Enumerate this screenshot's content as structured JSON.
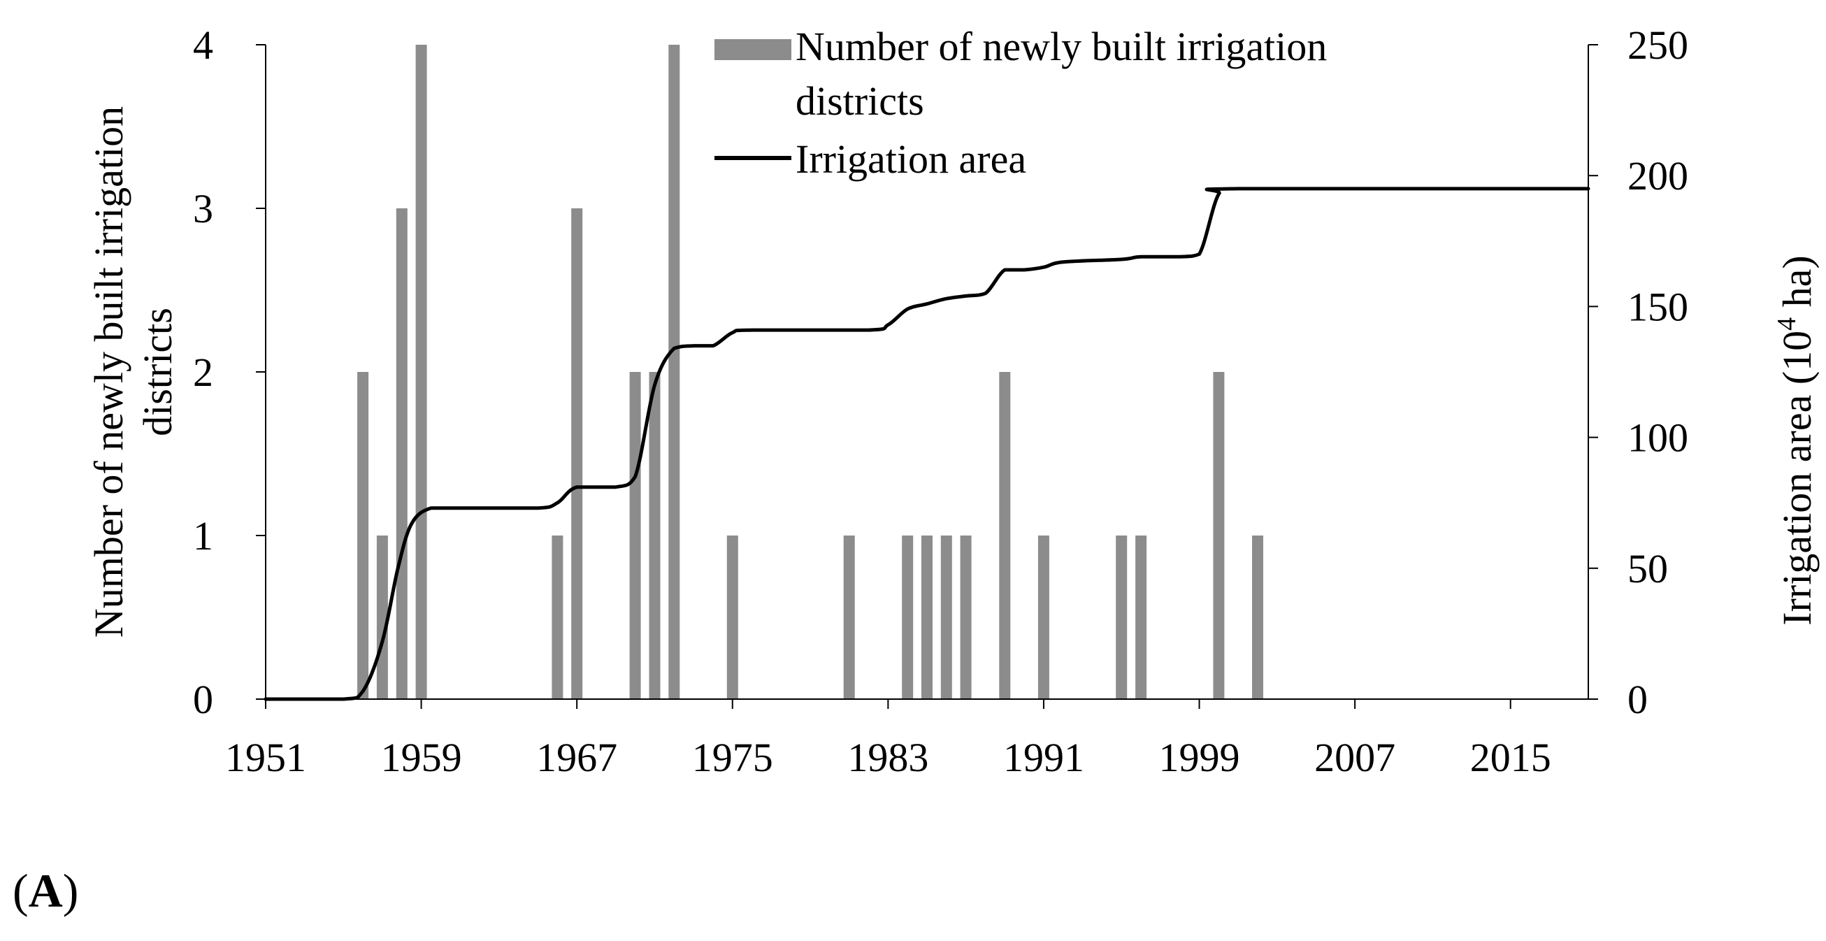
{
  "panel_label": {
    "open": "(",
    "letter": "A",
    "close": ")"
  },
  "chart_data": {
    "type": "bar+line",
    "x_axis": {
      "min": 1951,
      "max": 2019,
      "tick_labels": [
        "1951",
        "1959",
        "1967",
        "1975",
        "1983",
        "1991",
        "1999",
        "2007",
        "2015"
      ]
    },
    "y_left": {
      "label_lines": [
        "Number of newly built irrigation",
        "districts"
      ],
      "min": 0,
      "max": 4,
      "tick_labels": [
        "0",
        "1",
        "2",
        "3",
        "4"
      ]
    },
    "y_right": {
      "label_main": "Irrigation area (10",
      "label_sup": "4",
      "label_end": " ha)",
      "min": 0,
      "max": 250,
      "tick_labels": [
        "0",
        "50",
        "100",
        "150",
        "200",
        "250"
      ]
    },
    "legend": {
      "placement": "top",
      "bar_label_lines": [
        "Number of newly built irrigation",
        "districts"
      ],
      "line_label": "Irrigation area"
    },
    "colors": {
      "bars": "#8c8c8c",
      "line": "#000000",
      "axes": "#000000"
    },
    "bars": [
      {
        "year": 1956,
        "value": 2
      },
      {
        "year": 1957,
        "value": 1
      },
      {
        "year": 1958,
        "value": 3
      },
      {
        "year": 1959,
        "value": 4
      },
      {
        "year": 1966,
        "value": 1
      },
      {
        "year": 1967,
        "value": 3
      },
      {
        "year": 1970,
        "value": 2
      },
      {
        "year": 1971,
        "value": 2
      },
      {
        "year": 1972,
        "value": 4
      },
      {
        "year": 1975,
        "value": 1
      },
      {
        "year": 1981,
        "value": 1
      },
      {
        "year": 1984,
        "value": 1
      },
      {
        "year": 1985,
        "value": 1
      },
      {
        "year": 1986,
        "value": 1
      },
      {
        "year": 1987,
        "value": 1
      },
      {
        "year": 1989,
        "value": 2
      },
      {
        "year": 1991,
        "value": 1
      },
      {
        "year": 1995,
        "value": 1
      },
      {
        "year": 1996,
        "value": 1
      },
      {
        "year": 2000,
        "value": 2
      },
      {
        "year": 2002,
        "value": 1
      }
    ],
    "line": [
      [
        1951,
        0
      ],
      [
        1955,
        0
      ],
      [
        1956,
        3
      ],
      [
        1957,
        22
      ],
      [
        1957.8,
        50
      ],
      [
        1958.5,
        67
      ],
      [
        1959.5,
        73
      ],
      [
        1961,
        73
      ],
      [
        1965,
        73
      ],
      [
        1966,
        75
      ],
      [
        1967,
        81
      ],
      [
        1969,
        81
      ],
      [
        1970,
        85
      ],
      [
        1971,
        120
      ],
      [
        1972,
        134
      ],
      [
        1973,
        135
      ],
      [
        1974,
        135
      ],
      [
        1975,
        140
      ],
      [
        1976,
        141
      ],
      [
        1982,
        141
      ],
      [
        1983,
        143
      ],
      [
        1984,
        149
      ],
      [
        1985,
        151
      ],
      [
        1986,
        153
      ],
      [
        1987,
        154
      ],
      [
        1988,
        155
      ],
      [
        1989,
        164
      ],
      [
        1990,
        164
      ],
      [
        1991,
        165
      ],
      [
        1992,
        167
      ],
      [
        1995,
        168
      ],
      [
        1996,
        169
      ],
      [
        1998,
        169
      ],
      [
        1999,
        170
      ],
      [
        2000,
        193
      ],
      [
        2001,
        195
      ],
      [
        2019,
        195
      ]
    ]
  }
}
